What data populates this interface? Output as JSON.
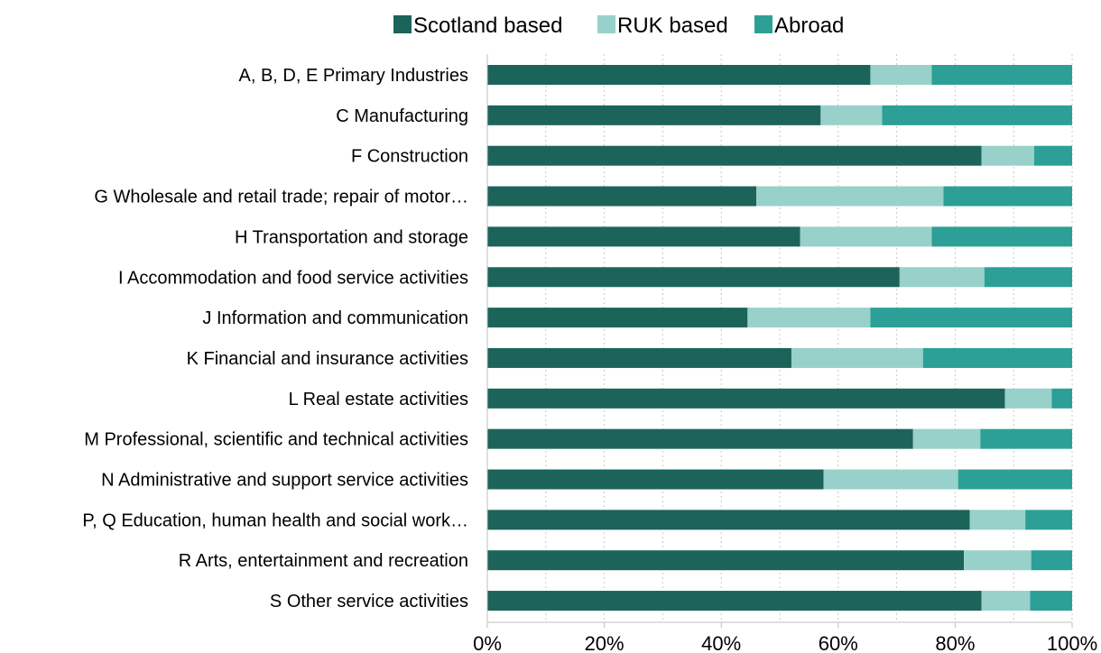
{
  "chart_data": {
    "type": "bar",
    "orientation": "horizontal",
    "stacked": true,
    "categories": [
      "A, B, D, E Primary Industries",
      "C Manufacturing",
      "F Construction",
      "G Wholesale and retail trade; repair of motor…",
      "H Transportation and storage",
      "I Accommodation and food service activities",
      "J Information and communication",
      "K Financial and insurance activities",
      "L Real estate activities",
      "M Professional, scientific and technical activities",
      "N Administrative and support service activities",
      "P, Q Education, human health and social work…",
      "R Arts, entertainment and recreation",
      "S Other service activities"
    ],
    "series": [
      {
        "name": "Scotland based",
        "color": "#1c6459",
        "values": [
          65.5,
          57,
          84.5,
          46,
          53.5,
          70.5,
          44.5,
          52,
          88.5,
          72.8,
          57.5,
          82.5,
          81.5,
          84.5
        ]
      },
      {
        "name": "RUK based",
        "color": "#98d1c9",
        "values": [
          10.5,
          10.5,
          9,
          32,
          22.5,
          14.5,
          21,
          22.5,
          8,
          11.5,
          23,
          9.5,
          11.5,
          8.3
        ]
      },
      {
        "name": "Abroad",
        "color": "#2ca097",
        "values": [
          24,
          32.5,
          6.5,
          22,
          24,
          15,
          34.5,
          25.5,
          3.5,
          15.7,
          19.5,
          8,
          7,
          7.2
        ]
      }
    ],
    "x_ticks": [
      "0%",
      "20%",
      "40%",
      "60%",
      "80%",
      "100%"
    ],
    "xlim": [
      0,
      100
    ],
    "grid": "vertical dotted",
    "legend_position": "top"
  }
}
